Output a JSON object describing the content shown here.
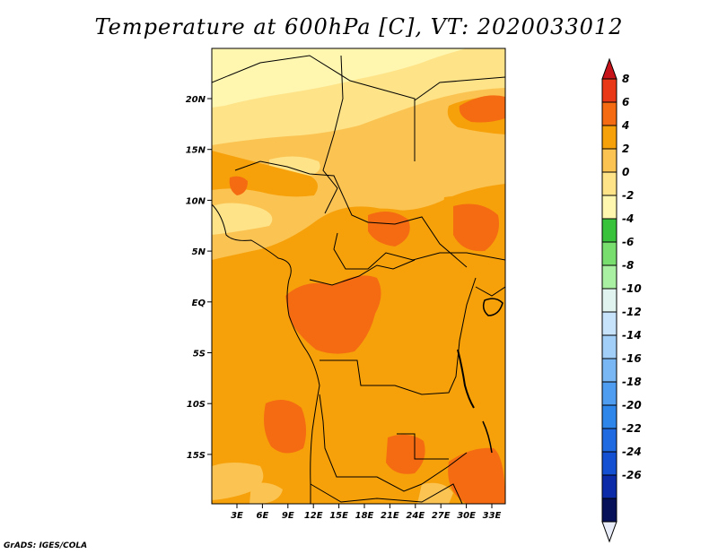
{
  "title": "Temperature at 600hPa [C], VT: 2020033012",
  "credit": "GrADS: IGES/COLA",
  "map": {
    "lat_ticks": [
      "20N",
      "15N",
      "10N",
      "5N",
      "EQ",
      "5S",
      "10S",
      "15S"
    ],
    "lon_ticks": [
      "3E",
      "6E",
      "9E",
      "12E",
      "15E",
      "18E",
      "21E",
      "24E",
      "27E",
      "30E",
      "33E"
    ],
    "field_colors": {
      "lt_m2": "#fff6b0",
      "lt_0": "#fee388",
      "lt_2": "#fbc352",
      "lt_4": "#f7a10a",
      "lt_6": "#f46b12"
    }
  },
  "colorbar": {
    "labels": [
      "8",
      "6",
      "4",
      "2",
      "0",
      "-2",
      "-4",
      "-6",
      "-8",
      "-10",
      "-12",
      "-14",
      "-16",
      "-18",
      "-20",
      "-22",
      "-24",
      "-26"
    ],
    "colors": [
      "#e8ecf8",
      "#06115a",
      "#0c2ba8",
      "#1450d2",
      "#1f6ae0",
      "#2e85ea",
      "#4f9df0",
      "#78b7f4",
      "#a2cff8",
      "#c6e3fb",
      "#e0f3ee",
      "#aaf0a2",
      "#78de6e",
      "#38c23c",
      "#fff6b0",
      "#fee388",
      "#fbc352",
      "#f7a10a",
      "#f46b12",
      "#e83818",
      "#c6141a"
    ]
  }
}
